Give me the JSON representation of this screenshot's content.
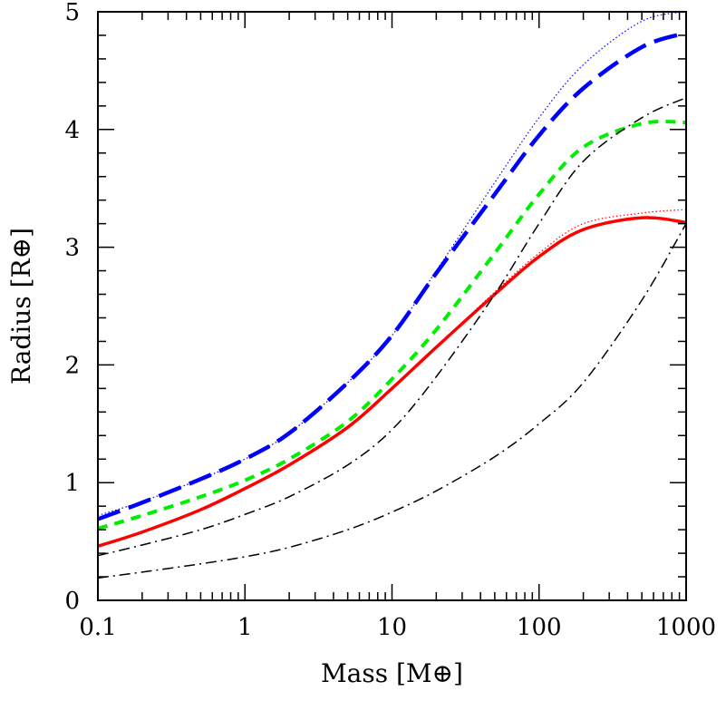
{
  "chart_data": {
    "type": "line",
    "title": "",
    "xlabel": "Mass [M⊕]",
    "ylabel": "Radius [R⊕]",
    "xscale": "log",
    "xlim": [
      0.1,
      1000
    ],
    "ylim": [
      0,
      5
    ],
    "xticks": [
      0.1,
      1,
      10,
      100,
      1000
    ],
    "xtick_labels": [
      "0.1",
      "1",
      "10",
      "100",
      "1000"
    ],
    "yticks": [
      0,
      1,
      2,
      3,
      4,
      5
    ],
    "ytick_labels": [
      "0",
      "1",
      "2",
      "3",
      "4",
      "5"
    ],
    "grid": false,
    "legend": "none",
    "series": [
      {
        "style": "dotted",
        "color": "#0000ff",
        "points": [
          [
            0.1,
            0.72
          ],
          [
            0.2,
            0.84
          ],
          [
            0.5,
            1.03
          ],
          [
            1,
            1.2
          ],
          [
            2,
            1.42
          ],
          [
            5,
            1.85
          ],
          [
            10,
            2.25
          ],
          [
            20,
            2.8
          ],
          [
            50,
            3.55
          ],
          [
            100,
            4.1
          ],
          [
            200,
            4.55
          ],
          [
            500,
            4.92
          ],
          [
            1000,
            5.0
          ]
        ]
      },
      {
        "style": "long-dash",
        "color": "#0000ff",
        "points": [
          [
            0.1,
            0.69
          ],
          [
            0.2,
            0.83
          ],
          [
            0.5,
            1.03
          ],
          [
            1,
            1.2
          ],
          [
            2,
            1.42
          ],
          [
            5,
            1.85
          ],
          [
            10,
            2.25
          ],
          [
            20,
            2.78
          ],
          [
            50,
            3.45
          ],
          [
            100,
            3.95
          ],
          [
            200,
            4.35
          ],
          [
            500,
            4.7
          ],
          [
            1000,
            4.82
          ]
        ]
      },
      {
        "style": "short-dash",
        "color": "#00ee00",
        "points": [
          [
            0.1,
            0.61
          ],
          [
            0.2,
            0.72
          ],
          [
            0.5,
            0.88
          ],
          [
            1,
            1.02
          ],
          [
            2,
            1.2
          ],
          [
            5,
            1.52
          ],
          [
            10,
            1.88
          ],
          [
            20,
            2.3
          ],
          [
            50,
            2.95
          ],
          [
            100,
            3.45
          ],
          [
            200,
            3.85
          ],
          [
            500,
            4.05
          ],
          [
            1000,
            4.06
          ]
        ]
      },
      {
        "style": "dotted",
        "color": "#ff0000",
        "points": [
          [
            0.1,
            0.46
          ],
          [
            0.2,
            0.58
          ],
          [
            0.5,
            0.77
          ],
          [
            1,
            0.95
          ],
          [
            2,
            1.15
          ],
          [
            5,
            1.48
          ],
          [
            10,
            1.8
          ],
          [
            20,
            2.15
          ],
          [
            50,
            2.62
          ],
          [
            100,
            2.95
          ],
          [
            200,
            3.2
          ],
          [
            500,
            3.29
          ],
          [
            1000,
            3.32
          ]
        ]
      },
      {
        "style": "solid",
        "color": "#ff0000",
        "points": [
          [
            0.1,
            0.46
          ],
          [
            0.2,
            0.58
          ],
          [
            0.5,
            0.77
          ],
          [
            1,
            0.95
          ],
          [
            2,
            1.15
          ],
          [
            5,
            1.47
          ],
          [
            10,
            1.8
          ],
          [
            20,
            2.15
          ],
          [
            50,
            2.6
          ],
          [
            100,
            2.92
          ],
          [
            200,
            3.15
          ],
          [
            500,
            3.25
          ],
          [
            1000,
            3.21
          ]
        ]
      },
      {
        "style": "dash-dot",
        "color": "#000000",
        "points": [
          [
            0.1,
            0.38
          ],
          [
            0.2,
            0.47
          ],
          [
            0.5,
            0.6
          ],
          [
            1,
            0.73
          ],
          [
            2,
            0.88
          ],
          [
            5,
            1.15
          ],
          [
            10,
            1.45
          ],
          [
            20,
            1.9
          ],
          [
            50,
            2.6
          ],
          [
            100,
            3.2
          ],
          [
            200,
            3.73
          ],
          [
            500,
            4.1
          ],
          [
            1000,
            4.27
          ]
        ]
      },
      {
        "style": "dash-dot",
        "color": "#000000",
        "points": [
          [
            0.1,
            0.19
          ],
          [
            0.2,
            0.24
          ],
          [
            0.5,
            0.31
          ],
          [
            1,
            0.37
          ],
          [
            2,
            0.45
          ],
          [
            5,
            0.6
          ],
          [
            10,
            0.75
          ],
          [
            20,
            0.93
          ],
          [
            50,
            1.22
          ],
          [
            100,
            1.5
          ],
          [
            200,
            1.85
          ],
          [
            500,
            2.55
          ],
          [
            1000,
            3.2
          ]
        ]
      }
    ]
  }
}
